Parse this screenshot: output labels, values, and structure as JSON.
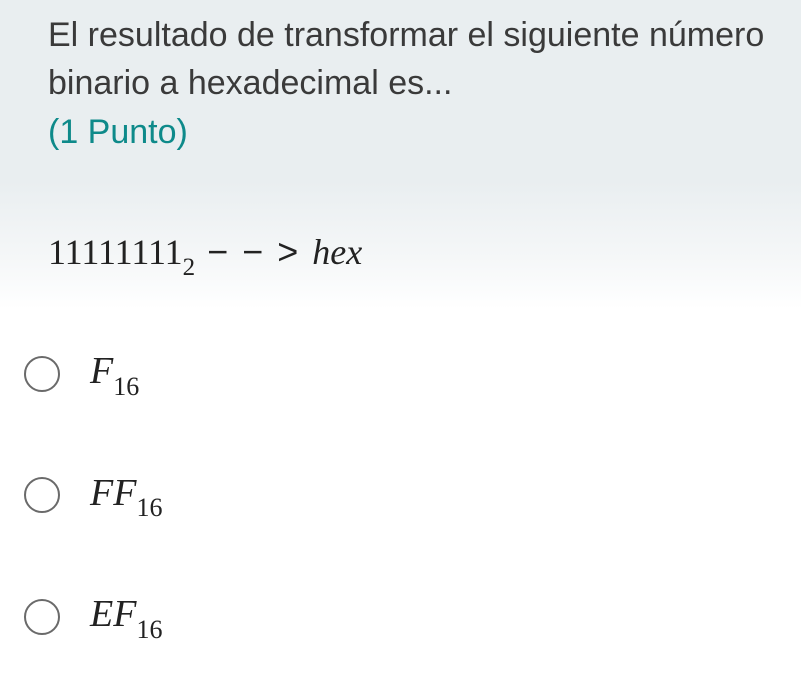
{
  "question": {
    "text": "El resultado de transformar el siguiente número binario a hexadecimal es...",
    "points_label": "(1 Punto)"
  },
  "formula": {
    "binary_value": "11111111",
    "binary_base": "2",
    "arrow": " − − > ",
    "target_word": "hex"
  },
  "options": [
    {
      "letters": "F",
      "base": "16",
      "selected": false
    },
    {
      "letters": "FF",
      "base": "16",
      "selected": false
    },
    {
      "letters": "EF",
      "base": "16",
      "selected": false
    }
  ],
  "colors": {
    "header_bg": "#e9eef0",
    "text_primary": "#3a3a3a",
    "points_color": "#0e8a8a",
    "radio_border": "#6a6a6a"
  },
  "typography": {
    "question_fontsize": 34,
    "formula_fontsize": 36,
    "option_fontsize": 38,
    "subscript_fontsize": 26
  }
}
